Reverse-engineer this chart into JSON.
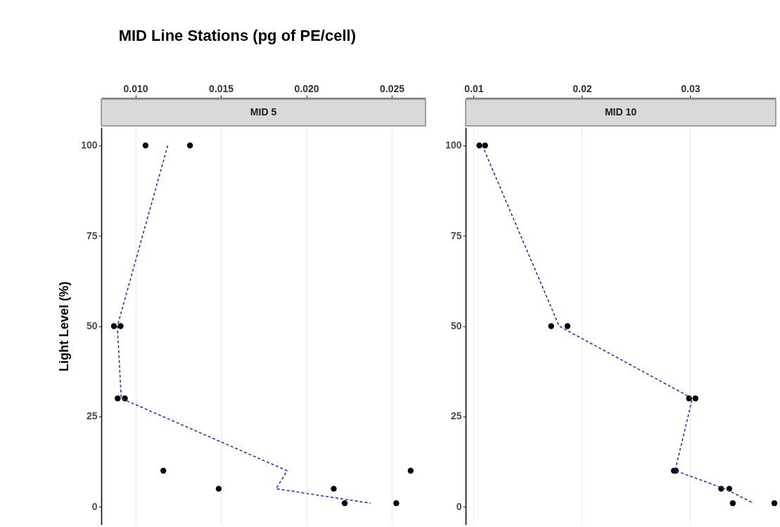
{
  "chart_data": [
    {
      "type": "scatter",
      "title": "MID Line Stations (pg of PE/cell)",
      "subtitle": "MID 5",
      "ylabel": "Light Level (%)",
      "xlim": [
        0.008,
        0.02697
      ],
      "xticks": [
        {
          "value": 0.01,
          "label": "0.010"
        },
        {
          "value": 0.015,
          "label": "0.015"
        },
        {
          "value": 0.02,
          "label": "0.020"
        },
        {
          "value": 0.025,
          "label": "0.025"
        }
      ],
      "ylim": [
        -5,
        105
      ],
      "yticks": [
        0,
        25,
        50,
        75,
        100
      ],
      "grid": "x",
      "series": [
        {
          "color": "#000000",
          "marker": "circle",
          "x": [
            0.01059,
            0.01319,
            0.00874,
            0.00913,
            0.00896,
            0.00938,
            0.01163,
            0.0261,
            0.01487,
            0.0216,
            0.02224,
            0.02526
          ],
          "values": [
            100,
            100,
            50,
            50,
            30,
            30,
            10,
            10,
            5,
            5,
            1,
            1
          ]
        },
        {
          "type": "line",
          "color": "#2b3aa8",
          "line_style": "dashed",
          "x": [
            0.01189,
            0.00894,
            0.00917,
            0.01887,
            0.01823,
            0.02375
          ],
          "values": [
            100,
            50,
            30,
            10,
            5,
            1
          ]
        }
      ]
    },
    {
      "type": "scatter",
      "subtitle": "MID 10",
      "xlim": [
        0.00926,
        0.0379
      ],
      "xticks": [
        {
          "value": 0.01,
          "label": "0.01"
        },
        {
          "value": 0.02,
          "label": "0.02"
        },
        {
          "value": 0.03,
          "label": "0.03"
        }
      ],
      "ylim": [
        -5,
        105
      ],
      "yticks": [
        0,
        25,
        50,
        75,
        100
      ],
      "grid": "x",
      "series": [
        {
          "color": "#000000",
          "marker": "circle",
          "x": [
            0.01053,
            0.01106,
            0.01716,
            0.01867,
            0.02989,
            0.03048,
            0.02849,
            0.02867,
            0.03286,
            0.03361,
            0.03393,
            0.03777
          ],
          "values": [
            100,
            100,
            50,
            50,
            30,
            30,
            10,
            10,
            5,
            5,
            1,
            1
          ]
        },
        {
          "type": "line",
          "color": "#2b3aa8",
          "line_style": "dashed",
          "x": [
            0.0108,
            0.0179,
            0.0302,
            0.0286,
            0.0332,
            0.03585
          ],
          "values": [
            100,
            50,
            30,
            10,
            5,
            1
          ]
        }
      ]
    }
  ]
}
